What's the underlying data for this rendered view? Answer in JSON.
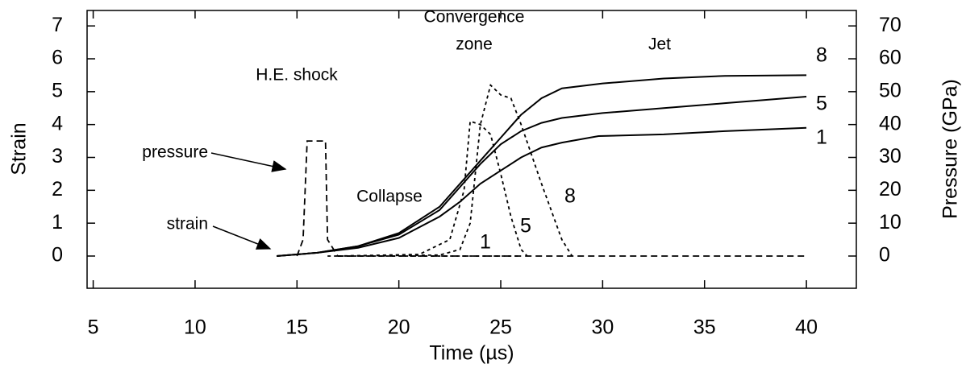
{
  "chart_data": {
    "type": "line",
    "xlabel": "Time (µs)",
    "ylabel": "Strain",
    "y2label": "Pressure (GPa)",
    "xlim": [
      4.7,
      42.45
    ],
    "xticks": [
      5,
      10,
      15,
      20,
      25,
      30,
      35,
      40
    ],
    "ylim": [
      -0.98,
      7.47
    ],
    "yticks": [
      0,
      1,
      2,
      3,
      4,
      5,
      6,
      7
    ],
    "y2lim": [
      -9.8,
      74.7
    ],
    "y2ticks": [
      0,
      10,
      20,
      30,
      40,
      50,
      60,
      70
    ],
    "series": [
      {
        "name": "8",
        "color": "#000000",
        "style": "solid",
        "x": [
          14,
          16,
          18,
          20,
          22,
          23,
          24,
          25,
          26,
          27,
          28,
          30,
          33,
          36,
          40
        ],
        "values": [
          0,
          0.1,
          0.3,
          0.7,
          1.5,
          2.2,
          2.9,
          3.6,
          4.3,
          4.8,
          5.1,
          5.25,
          5.4,
          5.48,
          5.5
        ]
      },
      {
        "name": "5",
        "color": "#000000",
        "style": "solid",
        "x": [
          14,
          16,
          18,
          20,
          22,
          23,
          24,
          25,
          26,
          27,
          28,
          30,
          33,
          36,
          40
        ],
        "values": [
          0,
          0.1,
          0.3,
          0.65,
          1.4,
          2.1,
          2.8,
          3.4,
          3.8,
          4.05,
          4.2,
          4.35,
          4.5,
          4.65,
          4.85
        ]
      },
      {
        "name": "1",
        "color": "#000000",
        "style": "solid",
        "x": [
          14,
          16,
          18,
          20,
          22,
          23,
          24,
          25,
          26,
          27,
          28,
          29.8,
          33,
          36,
          40
        ],
        "values": [
          0,
          0.1,
          0.25,
          0.55,
          1.2,
          1.65,
          2.2,
          2.6,
          3.0,
          3.3,
          3.45,
          3.65,
          3.7,
          3.8,
          3.9
        ]
      },
      {
        "color": "#000000",
        "style": "dashed",
        "axis": "y2",
        "x": [
          15,
          15.3,
          15.5,
          16.4,
          16.5,
          17,
          26,
          40
        ],
        "values": [
          0,
          5,
          35,
          35,
          5,
          0,
          0,
          0
        ]
      },
      {
        "name": "8",
        "color": "#000000",
        "style": "dotted",
        "axis": "y2",
        "x": [
          17,
          22,
          23,
          23.5,
          24,
          24.5,
          25,
          25.5,
          26,
          27,
          28,
          28.5
        ],
        "values": [
          0,
          0.3,
          2,
          10,
          40,
          52,
          49,
          48,
          40,
          22,
          5,
          0
        ]
      },
      {
        "name": "5",
        "color": "#000000",
        "style": "dotted",
        "axis": "y2",
        "x": [
          17,
          21,
          22.5,
          23.2,
          23.5,
          24,
          24.5,
          25,
          25.5,
          26,
          26.3
        ],
        "values": [
          0,
          0.5,
          5,
          20,
          41,
          40,
          37,
          25,
          12,
          2,
          0
        ]
      },
      {
        "name": "1",
        "color": "#000000",
        "style": "dotted",
        "axis": "y2",
        "x": [
          16.5,
          26
        ],
        "values": [
          0,
          0
        ]
      }
    ],
    "annotations": [
      "H.E. shock",
      "Convergence",
      "zone",
      "Jet",
      "Collapse",
      "pressure",
      "strain"
    ]
  }
}
